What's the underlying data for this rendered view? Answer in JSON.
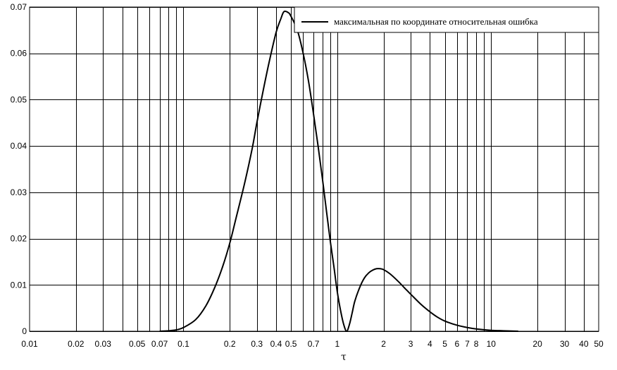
{
  "chart_data": {
    "type": "line",
    "xscale": "log",
    "xlim": [
      0.01,
      50
    ],
    "ylim": [
      0,
      0.07
    ],
    "xlabel": "τ",
    "ylabel": "",
    "title": "",
    "grid": true,
    "legend_position": "top-right",
    "xticks": [
      0.01,
      0.02,
      0.03,
      0.05,
      0.07,
      0.1,
      0.2,
      0.3,
      0.4,
      0.5,
      0.7,
      1,
      2,
      3,
      4,
      5,
      6,
      7,
      8,
      10,
      20,
      30,
      40,
      50
    ],
    "xtick_labels": [
      "0.01",
      "0.02",
      "0.03",
      "0.05",
      "0.07",
      "0.1",
      "0.2",
      "0.3",
      "0.4",
      "0.5",
      "0.7",
      "1",
      "2",
      "3",
      "4",
      "5",
      "6",
      "7",
      "8",
      "10",
      "20",
      "30",
      "40",
      "50"
    ],
    "x_gridlines": [
      0.02,
      0.03,
      0.04,
      0.05,
      0.06,
      0.07,
      0.08,
      0.09,
      0.1,
      0.2,
      0.3,
      0.4,
      0.5,
      0.6,
      0.7,
      0.8,
      0.9,
      1,
      2,
      3,
      4,
      5,
      6,
      7,
      8,
      9,
      10,
      20,
      30,
      40
    ],
    "yticks": [
      0,
      0.01,
      0.02,
      0.03,
      0.04,
      0.05,
      0.06,
      0.07
    ],
    "ytick_labels": [
      "0",
      "0.01",
      "0.02",
      "0.03",
      "0.04",
      "0.05",
      "0.06",
      "0.07"
    ],
    "series": [
      {
        "name": "максимальная по координате относительная ошибка",
        "color": "#000000",
        "x": [
          0.07,
          0.08,
          0.09,
          0.1,
          0.12,
          0.14,
          0.16,
          0.18,
          0.2,
          0.22,
          0.25,
          0.28,
          0.3,
          0.33,
          0.36,
          0.4,
          0.43,
          0.45,
          0.48,
          0.5,
          0.55,
          0.6,
          0.65,
          0.7,
          0.75,
          0.8,
          0.85,
          0.9,
          0.95,
          1.0,
          1.05,
          1.1,
          1.15,
          1.2,
          1.25,
          1.3,
          1.4,
          1.5,
          1.6,
          1.7,
          1.8,
          1.9,
          2.0,
          2.2,
          2.5,
          2.8,
          3.0,
          3.5,
          4.0,
          4.5,
          5.0,
          6.0,
          7.0,
          8.0,
          10.0,
          12.0,
          15.0
        ],
        "y": [
          0.0,
          0.0001,
          0.0003,
          0.0008,
          0.0025,
          0.0055,
          0.0095,
          0.014,
          0.019,
          0.0245,
          0.032,
          0.0395,
          0.045,
          0.052,
          0.058,
          0.0645,
          0.0675,
          0.069,
          0.0688,
          0.068,
          0.065,
          0.06,
          0.054,
          0.047,
          0.04,
          0.033,
          0.026,
          0.0195,
          0.014,
          0.0085,
          0.0045,
          0.0015,
          0.0,
          0.0015,
          0.004,
          0.0065,
          0.0095,
          0.0115,
          0.0126,
          0.0132,
          0.0135,
          0.0135,
          0.0133,
          0.0124,
          0.0107,
          0.009,
          0.008,
          0.0058,
          0.0042,
          0.003,
          0.0022,
          0.0013,
          0.0008,
          0.0005,
          0.0002,
          0.0001,
          0.0
        ]
      }
    ]
  }
}
